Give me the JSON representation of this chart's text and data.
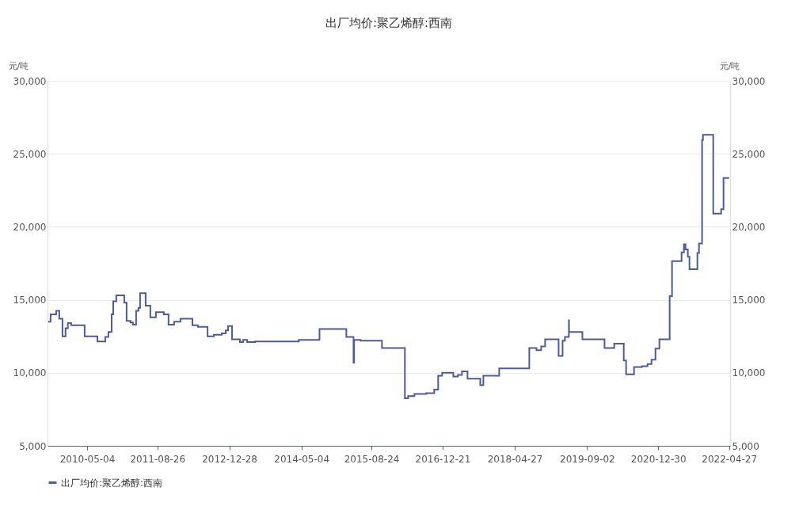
{
  "chart_data": {
    "type": "step",
    "title": "出厂均价:聚乙烯醇:西南",
    "ylabel": "元/吨",
    "y2label": "元/吨",
    "x": [
      "2009-08-12",
      "2009-08-28",
      "2009-10-05",
      "2009-10-21",
      "2009-10-26",
      "2009-11-17",
      "2009-12-08",
      "2009-12-24",
      "2010-01-10",
      "2010-01-15",
      "2010-04-07",
      "2010-04-17",
      "2010-06-27",
      "2010-07-13",
      "2010-08-09",
      "2010-09-05",
      "2010-09-26",
      "2010-10-18",
      "2010-10-29",
      "2010-11-19",
      "2010-12-16",
      "2011-01-12",
      "2011-01-28",
      "2011-02-24",
      "2011-03-12",
      "2011-04-03",
      "2011-04-19",
      "2011-04-30",
      "2011-05-27",
      "2011-06-07",
      "2011-07-09",
      "2011-08-05",
      "2011-08-16",
      "2011-09-17",
      "2011-10-09",
      "2011-11-10",
      "2011-12-18",
      "2012-01-30",
      "2012-03-08",
      "2012-04-21",
      "2012-05-28",
      "2012-07-11",
      "2012-08-02",
      "2012-09-14",
      "2012-11-07",
      "2012-12-04",
      "2012-12-20",
      "2013-01-11",
      "2013-01-16",
      "2013-03-11",
      "2013-04-02",
      "2013-04-29",
      "2013-06-11",
      "2013-06-22",
      "2014-04-16",
      "2014-09-03",
      "2014-09-04",
      "2015-03-05",
      "2015-03-06",
      "2015-04-23",
      "2015-04-24",
      "2015-04-28",
      "2015-06-11",
      "2015-11-03",
      "2015-11-04",
      "2016-03-23",
      "2016-04-08",
      "2016-04-30",
      "2016-06-12",
      "2016-09-01",
      "2016-10-25",
      "2016-11-21",
      "2016-12-18",
      "2017-02-21",
      "2017-03-04",
      "2017-04-05",
      "2017-05-02",
      "2017-05-29",
      "2017-06-09",
      "2017-08-13",
      "2017-09-04",
      "2017-09-25",
      "2017-12-26",
      "2018-01-11",
      "2018-07-30",
      "2018-08-04",
      "2018-09-11",
      "2018-09-22",
      "2018-10-24",
      "2018-11-20",
      "2019-02-09",
      "2019-02-20",
      "2019-03-08",
      "2019-03-19",
      "2019-04-04",
      "2019-05-01",
      "2019-05-02",
      "2019-07-05",
      "2019-08-01",
      "2019-12-13",
      "2019-12-30",
      "2020-02-23",
      "2020-03-05",
      "2020-04-17",
      "2020-05-09",
      "2020-05-25",
      "2020-06-21",
      "2020-07-18",
      "2020-09-10",
      "2020-10-18",
      "2020-11-14",
      "2020-12-11",
      "2021-01-07",
      "2021-02-19",
      "2021-03-18",
      "2021-04-03",
      "2021-05-27",
      "2021-06-07",
      "2021-06-23",
      "2021-07-04",
      "2021-07-20",
      "2021-07-31",
      "2021-09-07",
      "2021-09-23",
      "2021-10-04",
      "2021-10-25",
      "2021-10-31",
      "2021-12-24",
      "2022-01-09",
      "2022-02-05",
      "2022-03-04",
      "2022-03-20",
      "2022-04-27"
    ],
    "series": [
      {
        "name": "出厂均价:聚乙烯醇:西南",
        "color": "#4e5a9e",
        "values": [
          13500,
          14000,
          14250,
          14250,
          13700,
          12500,
          13050,
          13400,
          13400,
          13250,
          13250,
          12500,
          12500,
          12150,
          12150,
          12450,
          12800,
          14000,
          14900,
          15300,
          15300,
          14800,
          13550,
          13450,
          13300,
          14250,
          14450,
          15450,
          15450,
          14600,
          13800,
          13800,
          14150,
          14150,
          14000,
          13300,
          13500,
          13700,
          13700,
          13250,
          13150,
          13150,
          12500,
          12600,
          12700,
          12900,
          13200,
          13200,
          12300,
          12100,
          12250,
          12100,
          12100,
          12150,
          12250,
          12300,
          13000,
          13000,
          12450,
          12450,
          10700,
          12250,
          12200,
          12200,
          11700,
          11700,
          8250,
          8400,
          8550,
          8600,
          8850,
          9800,
          10000,
          10000,
          9750,
          9850,
          10100,
          10100,
          9600,
          9600,
          9150,
          9800,
          9800,
          10300,
          10300,
          11700,
          11700,
          11550,
          11800,
          12300,
          12300,
          11150,
          11150,
          12200,
          12450,
          13600,
          12800,
          12800,
          12300,
          12300,
          11700,
          11700,
          12000,
          12000,
          10850,
          9900,
          9900,
          10400,
          10450,
          10600,
          10900,
          11650,
          12300,
          12300,
          15250,
          17650,
          17650,
          18250,
          18800,
          18450,
          17950,
          17100,
          17100,
          18200,
          18850,
          25950,
          26300,
          26300,
          20900,
          20900,
          21200,
          23350,
          23350
        ]
      }
    ],
    "xlim": [
      "2009-08-07",
      "2022-05-04"
    ],
    "xticks": [
      "2010-05-04",
      "2011-08-26",
      "2012-12-28",
      "2014-05-04",
      "2015-08-24",
      "2016-12-21",
      "2018-04-27",
      "2019-09-02",
      "2020-12-30",
      "2022-04-27"
    ],
    "ylim": [
      5000,
      30000
    ],
    "yticks": [
      {
        "value": 5000,
        "label": "5,000"
      },
      {
        "value": 10000,
        "label": "10,000"
      },
      {
        "value": 15000,
        "label": "15,000"
      },
      {
        "value": 20000,
        "label": "20,000"
      },
      {
        "value": 25000,
        "label": "25,000"
      },
      {
        "value": 30000,
        "label": "30,000"
      }
    ],
    "y2lim": [
      5000,
      30000
    ],
    "y2ticks": [
      {
        "value": 5000,
        "label": "5,000"
      },
      {
        "value": 10000,
        "label": "10,000"
      },
      {
        "value": 15000,
        "label": "15,000"
      },
      {
        "value": 20000,
        "label": "20,000"
      },
      {
        "value": 25000,
        "label": "25,000"
      },
      {
        "value": 30000,
        "label": "30,000"
      }
    ],
    "grid": "y",
    "legend": "bottom"
  }
}
